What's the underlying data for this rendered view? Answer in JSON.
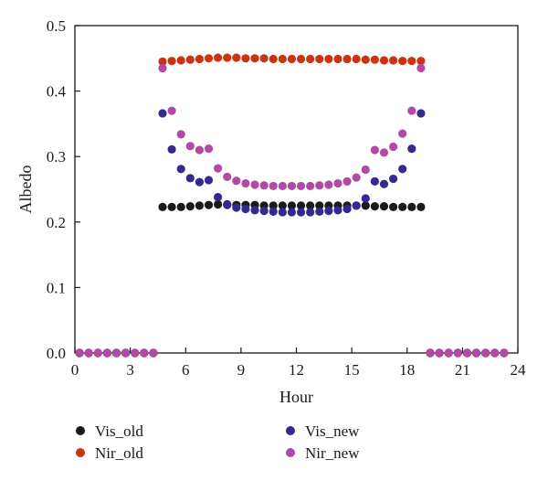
{
  "chart_data": {
    "type": "scatter",
    "xlabel": "Hour",
    "ylabel": "Albedo",
    "xlim": [
      0,
      24
    ],
    "ylim": [
      0,
      0.5
    ],
    "xticks": [
      "0",
      "3",
      "6",
      "9",
      "12",
      "15",
      "18",
      "21",
      "24"
    ],
    "yticks": [
      "0.0",
      "0.1",
      "0.2",
      "0.3",
      "0.4",
      "0.5"
    ],
    "grid": false,
    "legend_position": "bottom",
    "series": [
      {
        "name": "Vis_old",
        "color": "#1a1a1a",
        "points": [
          [
            0.25,
            0
          ],
          [
            0.75,
            0
          ],
          [
            1.25,
            0
          ],
          [
            1.75,
            0
          ],
          [
            2.25,
            0
          ],
          [
            2.75,
            0
          ],
          [
            3.25,
            0
          ],
          [
            3.75,
            0
          ],
          [
            4.25,
            0
          ],
          [
            4.75,
            0.223
          ],
          [
            5.25,
            0.223
          ],
          [
            5.75,
            0.223
          ],
          [
            6.25,
            0.224
          ],
          [
            6.75,
            0.225
          ],
          [
            7.25,
            0.226
          ],
          [
            7.75,
            0.227
          ],
          [
            8.25,
            0.227
          ],
          [
            8.75,
            0.226
          ],
          [
            9.25,
            0.226
          ],
          [
            9.75,
            0.226
          ],
          [
            10.25,
            0.225
          ],
          [
            10.75,
            0.225
          ],
          [
            11.25,
            0.225
          ],
          [
            11.75,
            0.225
          ],
          [
            12.25,
            0.225
          ],
          [
            12.75,
            0.225
          ],
          [
            13.25,
            0.225
          ],
          [
            13.75,
            0.225
          ],
          [
            14.25,
            0.225
          ],
          [
            14.75,
            0.225
          ],
          [
            15.25,
            0.225
          ],
          [
            15.75,
            0.225
          ],
          [
            16.25,
            0.224
          ],
          [
            16.75,
            0.224
          ],
          [
            17.25,
            0.223
          ],
          [
            17.75,
            0.223
          ],
          [
            18.25,
            0.223
          ],
          [
            18.75,
            0.223
          ],
          [
            19.25,
            0
          ],
          [
            19.75,
            0
          ],
          [
            20.25,
            0
          ],
          [
            20.75,
            0
          ],
          [
            21.25,
            0
          ],
          [
            21.75,
            0
          ],
          [
            22.25,
            0
          ],
          [
            22.75,
            0
          ],
          [
            23.25,
            0
          ]
        ]
      },
      {
        "name": "Nir_old",
        "color": "#cc3311",
        "points": [
          [
            0.25,
            0
          ],
          [
            0.75,
            0
          ],
          [
            1.25,
            0
          ],
          [
            1.75,
            0
          ],
          [
            2.25,
            0
          ],
          [
            2.75,
            0
          ],
          [
            3.25,
            0
          ],
          [
            3.75,
            0
          ],
          [
            4.25,
            0
          ],
          [
            4.75,
            0.445
          ],
          [
            5.25,
            0.446
          ],
          [
            5.75,
            0.447
          ],
          [
            6.25,
            0.448
          ],
          [
            6.75,
            0.449
          ],
          [
            7.25,
            0.45
          ],
          [
            7.75,
            0.451
          ],
          [
            8.25,
            0.451
          ],
          [
            8.75,
            0.451
          ],
          [
            9.25,
            0.45
          ],
          [
            9.75,
            0.45
          ],
          [
            10.25,
            0.45
          ],
          [
            10.75,
            0.449
          ],
          [
            11.25,
            0.449
          ],
          [
            11.75,
            0.449
          ],
          [
            12.25,
            0.449
          ],
          [
            12.75,
            0.449
          ],
          [
            13.25,
            0.449
          ],
          [
            13.75,
            0.449
          ],
          [
            14.25,
            0.449
          ],
          [
            14.75,
            0.449
          ],
          [
            15.25,
            0.449
          ],
          [
            15.75,
            0.448
          ],
          [
            16.25,
            0.448
          ],
          [
            16.75,
            0.447
          ],
          [
            17.25,
            0.447
          ],
          [
            17.75,
            0.446
          ],
          [
            18.25,
            0.446
          ],
          [
            18.75,
            0.446
          ],
          [
            19.25,
            0
          ],
          [
            19.75,
            0
          ],
          [
            20.25,
            0
          ],
          [
            20.75,
            0
          ],
          [
            21.25,
            0
          ],
          [
            21.75,
            0
          ],
          [
            22.25,
            0
          ],
          [
            22.75,
            0
          ],
          [
            23.25,
            0
          ]
        ]
      },
      {
        "name": "Vis_new",
        "color": "#33298f",
        "points": [
          [
            0.25,
            0
          ],
          [
            0.75,
            0
          ],
          [
            1.25,
            0
          ],
          [
            1.75,
            0
          ],
          [
            2.25,
            0
          ],
          [
            2.75,
            0
          ],
          [
            3.25,
            0
          ],
          [
            3.75,
            0
          ],
          [
            4.25,
            0
          ],
          [
            4.75,
            0.366
          ],
          [
            5.25,
            0.311
          ],
          [
            5.75,
            0.281
          ],
          [
            6.25,
            0.267
          ],
          [
            6.75,
            0.261
          ],
          [
            7.25,
            0.264
          ],
          [
            7.75,
            0.238
          ],
          [
            8.25,
            0.226
          ],
          [
            8.75,
            0.222
          ],
          [
            9.25,
            0.22
          ],
          [
            9.75,
            0.218
          ],
          [
            10.25,
            0.217
          ],
          [
            10.75,
            0.216
          ],
          [
            11.25,
            0.215
          ],
          [
            11.75,
            0.215
          ],
          [
            12.25,
            0.215
          ],
          [
            12.75,
            0.215
          ],
          [
            13.25,
            0.216
          ],
          [
            13.75,
            0.217
          ],
          [
            14.25,
            0.218
          ],
          [
            14.75,
            0.22
          ],
          [
            15.25,
            0.225
          ],
          [
            15.75,
            0.236
          ],
          [
            16.25,
            0.262
          ],
          [
            16.75,
            0.258
          ],
          [
            17.25,
            0.266
          ],
          [
            17.75,
            0.281
          ],
          [
            18.25,
            0.312
          ],
          [
            18.75,
            0.366
          ],
          [
            19.25,
            0
          ],
          [
            19.75,
            0
          ],
          [
            20.25,
            0
          ],
          [
            20.75,
            0
          ],
          [
            21.25,
            0
          ],
          [
            21.75,
            0
          ],
          [
            22.25,
            0
          ],
          [
            22.75,
            0
          ],
          [
            23.25,
            0
          ]
        ]
      },
      {
        "name": "Nir_new",
        "color": "#b04aa5",
        "points": [
          [
            0.25,
            0
          ],
          [
            0.75,
            0
          ],
          [
            1.25,
            0
          ],
          [
            1.75,
            0
          ],
          [
            2.25,
            0
          ],
          [
            2.75,
            0
          ],
          [
            3.25,
            0
          ],
          [
            3.75,
            0
          ],
          [
            4.25,
            0
          ],
          [
            4.75,
            0.435
          ],
          [
            5.25,
            0.37
          ],
          [
            5.75,
            0.334
          ],
          [
            6.25,
            0.316
          ],
          [
            6.75,
            0.31
          ],
          [
            7.25,
            0.312
          ],
          [
            7.75,
            0.282
          ],
          [
            8.25,
            0.269
          ],
          [
            8.75,
            0.263
          ],
          [
            9.25,
            0.259
          ],
          [
            9.75,
            0.257
          ],
          [
            10.25,
            0.256
          ],
          [
            10.75,
            0.255
          ],
          [
            11.25,
            0.255
          ],
          [
            11.75,
            0.255
          ],
          [
            12.25,
            0.255
          ],
          [
            12.75,
            0.255
          ],
          [
            13.25,
            0.256
          ],
          [
            13.75,
            0.257
          ],
          [
            14.25,
            0.259
          ],
          [
            14.75,
            0.262
          ],
          [
            15.25,
            0.268
          ],
          [
            15.75,
            0.28
          ],
          [
            16.25,
            0.31
          ],
          [
            16.75,
            0.306
          ],
          [
            17.25,
            0.315
          ],
          [
            17.75,
            0.335
          ],
          [
            18.25,
            0.37
          ],
          [
            18.75,
            0.435
          ],
          [
            19.25,
            0
          ],
          [
            19.75,
            0
          ],
          [
            20.25,
            0
          ],
          [
            20.75,
            0
          ],
          [
            21.25,
            0
          ],
          [
            21.75,
            0
          ],
          [
            22.25,
            0
          ],
          [
            22.75,
            0
          ],
          [
            23.25,
            0
          ]
        ]
      }
    ]
  }
}
